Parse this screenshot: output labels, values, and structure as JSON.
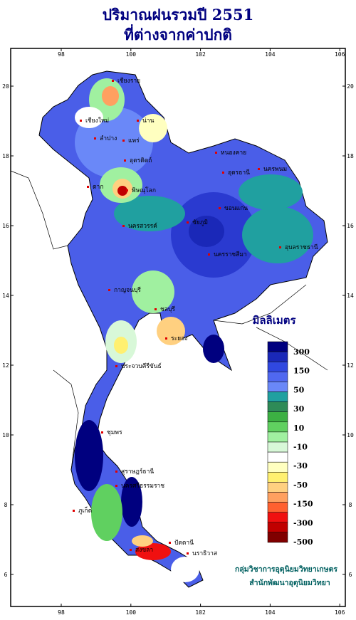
{
  "title": [
    "ปริมาณฝนรวมปี 2551",
    "ที่ต่างจากค่าปกติ"
  ],
  "lon_ticks": [
    98,
    100,
    102,
    104,
    106
  ],
  "lat_ticks": [
    6,
    8,
    10,
    12,
    14,
    16,
    18,
    20
  ],
  "legend": {
    "title": "มิลลิเมตร",
    "labels": [
      300,
      150,
      50,
      30,
      10,
      -10,
      -30,
      -50,
      -150,
      -300,
      -500
    ],
    "colors": [
      "#00007f",
      "#1a28b8",
      "#3048e0",
      "#5068f0",
      "#6a88f8",
      "#20a0a0",
      "#2e8b57",
      "#3cb043",
      "#60d060",
      "#a0f0a0",
      "#d8f8d8",
      "#ffffff",
      "#ffffc0",
      "#fff070",
      "#ffd080",
      "#ffa060",
      "#ff6030",
      "#f01010",
      "#c00000",
      "#800000"
    ]
  },
  "cities": [
    "เชียงราย",
    "เชียงใหม่",
    "น่าน",
    "ลำปาง",
    "แพร่",
    "อุตรดิตถ์",
    "ตาก",
    "พิษณุโลก",
    "หนองคาย",
    "อุดรธานี",
    "นครพนม",
    "ขอนแก่น",
    "ชัยภูมิ",
    "นครสวรรค์",
    "นครราชสีมา",
    "อุบลราชธานี",
    "กาญจนบุรี",
    "ชลบุรี",
    "ระยอง",
    "ประจวบคีรีขันธ์",
    "ชุมพร",
    "สุราษฎร์ธานี",
    "นครศรีธรรมราช",
    "ภูเก็ต",
    "สงขลา",
    "ปัตตานี",
    "นราธิวาส"
  ],
  "credits": [
    "กลุ่มวิชาการอุตุนิยมวิทยาเกษตร",
    "สำนักพัฒนาอุตุนิยมวิทยา"
  ]
}
